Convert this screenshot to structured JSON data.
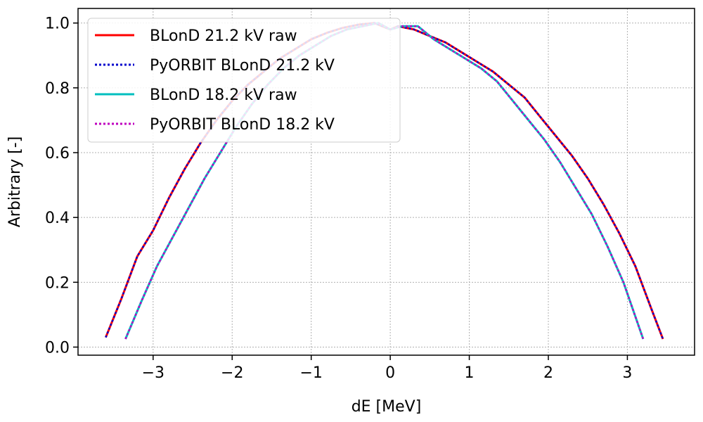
{
  "chart_data": {
    "type": "line",
    "title": "",
    "xlabel": "dE [MeV]",
    "ylabel": "Arbitrary [-]",
    "xlim": [
      -3.95,
      3.85
    ],
    "ylim": [
      -0.025,
      1.045
    ],
    "xticks": [
      -3,
      -2,
      -1,
      0,
      1,
      2,
      3
    ],
    "xtick_labels": [
      "−3",
      "−2",
      "−1",
      "0",
      "1",
      "2",
      "3"
    ],
    "yticks": [
      0.0,
      0.2,
      0.4,
      0.6,
      0.8,
      1.0
    ],
    "ytick_labels": [
      "0.0",
      "0.2",
      "0.4",
      "0.6",
      "0.8",
      "1.0"
    ],
    "grid": true,
    "legend_position": "upper-left",
    "series": [
      {
        "name": "BLonD 21.2 kV raw",
        "color": "#ff0000",
        "style": "solid",
        "x": [
          -3.6,
          -3.4,
          -3.2,
          -3.0,
          -2.8,
          -2.6,
          -2.4,
          -2.2,
          -2.0,
          -1.8,
          -1.6,
          -1.4,
          -1.2,
          -1.0,
          -0.8,
          -0.6,
          -0.4,
          -0.2,
          0.0,
          0.1,
          0.3,
          0.5,
          0.7,
          0.9,
          1.1,
          1.3,
          1.5,
          1.7,
          1.9,
          2.1,
          2.3,
          2.5,
          2.7,
          2.9,
          3.1,
          3.3,
          3.45
        ],
        "y": [
          0.03,
          0.15,
          0.28,
          0.36,
          0.46,
          0.55,
          0.63,
          0.7,
          0.76,
          0.81,
          0.85,
          0.89,
          0.92,
          0.95,
          0.97,
          0.985,
          0.995,
          1.0,
          0.98,
          0.99,
          0.98,
          0.96,
          0.94,
          0.91,
          0.88,
          0.85,
          0.81,
          0.77,
          0.71,
          0.65,
          0.59,
          0.52,
          0.44,
          0.35,
          0.25,
          0.12,
          0.025
        ]
      },
      {
        "name": "PyORBIT BLonD 21.2 kV",
        "color": "#0000cc",
        "style": "dotted",
        "x": [
          -3.6,
          -3.4,
          -3.2,
          -3.0,
          -2.8,
          -2.6,
          -2.4,
          -2.2,
          -2.0,
          -1.8,
          -1.6,
          -1.4,
          -1.2,
          -1.0,
          -0.8,
          -0.6,
          -0.4,
          -0.2,
          0.0,
          0.1,
          0.3,
          0.5,
          0.7,
          0.9,
          1.1,
          1.3,
          1.5,
          1.7,
          1.9,
          2.1,
          2.3,
          2.5,
          2.7,
          2.9,
          3.1,
          3.3,
          3.45
        ],
        "y": [
          0.03,
          0.15,
          0.28,
          0.36,
          0.46,
          0.55,
          0.63,
          0.7,
          0.76,
          0.81,
          0.85,
          0.89,
          0.92,
          0.95,
          0.97,
          0.985,
          0.995,
          1.0,
          0.98,
          0.99,
          0.98,
          0.96,
          0.94,
          0.91,
          0.88,
          0.85,
          0.81,
          0.77,
          0.71,
          0.65,
          0.59,
          0.52,
          0.44,
          0.35,
          0.25,
          0.12,
          0.025
        ]
      },
      {
        "name": "BLonD 18.2 kV raw",
        "color": "#00bfbf",
        "style": "solid",
        "x": [
          -3.35,
          -3.15,
          -2.95,
          -2.75,
          -2.55,
          -2.35,
          -2.15,
          -1.95,
          -1.75,
          -1.55,
          -1.35,
          -1.15,
          -0.95,
          -0.75,
          -0.55,
          -0.35,
          -0.15,
          0.0,
          0.15,
          0.35,
          0.55,
          0.75,
          0.95,
          1.15,
          1.35,
          1.55,
          1.75,
          1.95,
          2.15,
          2.35,
          2.55,
          2.75,
          2.95,
          3.2
        ],
        "y": [
          0.025,
          0.14,
          0.25,
          0.34,
          0.43,
          0.52,
          0.6,
          0.68,
          0.75,
          0.81,
          0.86,
          0.9,
          0.93,
          0.96,
          0.98,
          0.99,
          1.0,
          0.98,
          0.99,
          0.99,
          0.95,
          0.92,
          0.89,
          0.86,
          0.82,
          0.76,
          0.7,
          0.64,
          0.57,
          0.49,
          0.41,
          0.31,
          0.2,
          0.025
        ]
      },
      {
        "name": "PyORBIT BLonD 18.2 kV",
        "color": "#bf00bf",
        "style": "dotted",
        "x": [
          -3.35,
          -3.15,
          -2.95,
          -2.75,
          -2.55,
          -2.35,
          -2.15,
          -1.95,
          -1.75,
          -1.55,
          -1.35,
          -1.15,
          -0.95,
          -0.75,
          -0.55,
          -0.35,
          -0.15,
          0.0,
          0.15,
          0.35,
          0.55,
          0.75,
          0.95,
          1.15,
          1.35,
          1.55,
          1.75,
          1.95,
          2.15,
          2.35,
          2.55,
          2.75,
          2.95,
          3.2
        ],
        "y": [
          0.025,
          0.14,
          0.25,
          0.34,
          0.43,
          0.52,
          0.6,
          0.68,
          0.75,
          0.81,
          0.86,
          0.9,
          0.93,
          0.96,
          0.98,
          0.99,
          1.0,
          0.98,
          0.99,
          0.99,
          0.95,
          0.92,
          0.89,
          0.86,
          0.82,
          0.76,
          0.7,
          0.64,
          0.57,
          0.49,
          0.41,
          0.31,
          0.2,
          0.025
        ]
      }
    ]
  }
}
